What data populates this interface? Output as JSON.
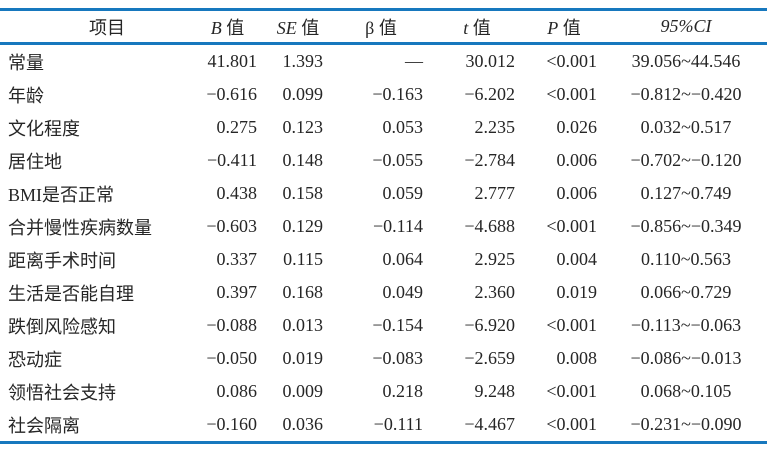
{
  "accent_color": "#1778be",
  "text_color": "#262626",
  "chart_data": {
    "type": "table",
    "columns": [
      "项目",
      "B 值",
      "SE 值",
      "β 值",
      "t 值",
      "P 值",
      "95%CI"
    ],
    "rows": [
      [
        "常量",
        "41.801",
        "1.393",
        "—",
        "30.012",
        "<0.001",
        "39.056~44.546"
      ],
      [
        "年龄",
        "−0.616",
        "0.099",
        "−0.163",
        "−6.202",
        "<0.001",
        "−0.812~−0.420"
      ],
      [
        "文化程度",
        "0.275",
        "0.123",
        "0.053",
        "2.235",
        "0.026",
        "0.032~0.517"
      ],
      [
        "居住地",
        "−0.411",
        "0.148",
        "−0.055",
        "−2.784",
        "0.006",
        "−0.702~−0.120"
      ],
      [
        "BMI是否正常",
        "0.438",
        "0.158",
        "0.059",
        "2.777",
        "0.006",
        "0.127~0.749"
      ],
      [
        "合并慢性疾病数量",
        "−0.603",
        "0.129",
        "−0.114",
        "−4.688",
        "<0.001",
        "−0.856~−0.349"
      ],
      [
        "距离手术时间",
        "0.337",
        "0.115",
        "0.064",
        "2.925",
        "0.004",
        "0.110~0.563"
      ],
      [
        "生活是否能自理",
        "0.397",
        "0.168",
        "0.049",
        "2.360",
        "0.019",
        "0.066~0.729"
      ],
      [
        "跌倒风险感知",
        "−0.088",
        "0.013",
        "−0.154",
        "−6.920",
        "<0.001",
        "−0.113~−0.063"
      ],
      [
        "恐动症",
        "−0.050",
        "0.019",
        "−0.083",
        "−2.659",
        "0.008",
        "−0.086~−0.013"
      ],
      [
        "领悟社会支持",
        "0.086",
        "0.009",
        "0.218",
        "9.248",
        "<0.001",
        "0.068~0.105"
      ],
      [
        "社会隔离",
        "−0.160",
        "0.036",
        "−0.111",
        "−4.467",
        "<0.001",
        "−0.231~−0.090"
      ]
    ]
  }
}
